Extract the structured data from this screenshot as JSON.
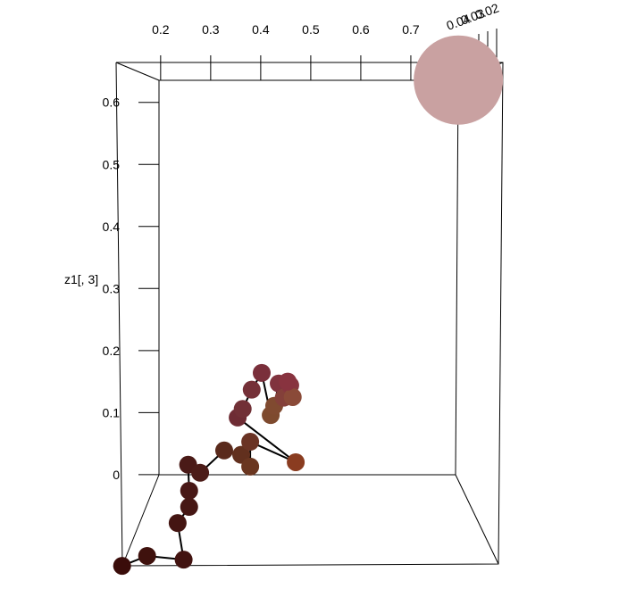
{
  "chart_data": {
    "type": "scatter3d",
    "ylabel": "z1[, 3]",
    "xlim": [
      -0.121,
      1.116
    ],
    "ylim": [
      -0.19,
      0.765
    ],
    "xticks": [
      0.2,
      0.3,
      0.4,
      0.5,
      0.6,
      0.7
    ],
    "yticks": [
      {
        "value": 0,
        "label": "0"
      },
      0.1,
      0.2,
      0.3,
      0.4,
      0.5,
      0.6
    ],
    "depth_ticks": [
      0.04,
      0.03,
      0.02
    ],
    "series": [
      {
        "x": [
          0.123,
          0.173,
          0.246,
          0.234,
          0.257,
          0.257,
          0.255,
          0.279,
          0.327,
          0.361,
          0.379,
          0.379,
          0.47,
          0.354,
          0.364,
          0.382,
          0.402,
          0.42,
          0.427,
          0.436,
          0.446,
          0.459,
          0.464,
          0.454
        ],
        "values": [
          -0.147,
          -0.131,
          -0.137,
          -0.078,
          -0.052,
          -0.026,
          0.016,
          0.003,
          0.039,
          0.032,
          0.013,
          0.053,
          0.02,
          0.092,
          0.106,
          0.137,
          0.164,
          0.096,
          0.111,
          0.147,
          0.124,
          0.144,
          0.125,
          0.15
        ],
        "colors": [
          "#3a0c0a",
          "#3f110d",
          "#421310",
          "#441512",
          "#461714",
          "#481816",
          "#4a1a17",
          "#4c1c18",
          "#5a2a1c",
          "#62301e",
          "#6a3620",
          "#6a3324",
          "#8a3c20",
          "#6e2c34",
          "#713036",
          "#753038",
          "#7a2f3b",
          "#7e4a2e",
          "#804a30",
          "#80333e",
          "#84403a",
          "#86363f",
          "#8a4a38",
          "#88333f"
        ],
        "lines": true
      },
      {
        "x": [
          0.795
        ],
        "values": [
          0.636
        ],
        "color": "#c9a1a1",
        "big": true
      }
    ]
  }
}
